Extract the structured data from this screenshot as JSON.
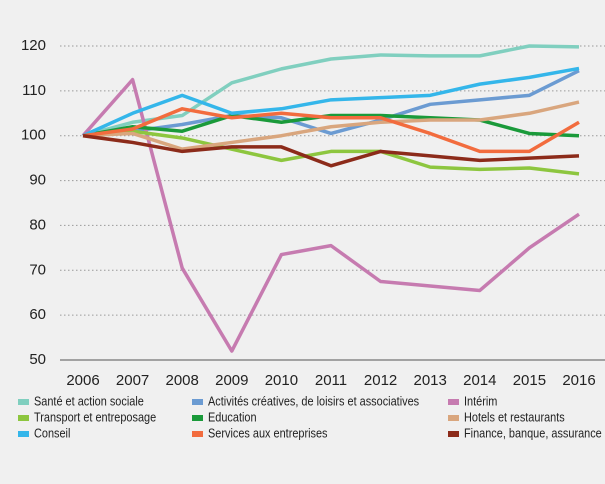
{
  "chart_data": {
    "type": "line",
    "x": [
      2006,
      2007,
      2008,
      2009,
      2010,
      2011,
      2012,
      2013,
      2014,
      2015,
      2016
    ],
    "xticks": [
      2006,
      2007,
      2008,
      2009,
      2010,
      2011,
      2012,
      2013,
      2014,
      2015,
      2016
    ],
    "xlim": [
      2006,
      2016
    ],
    "ylim": [
      50,
      120
    ],
    "yticks": [
      50,
      60,
      70,
      80,
      90,
      100,
      110,
      120
    ],
    "grid": true,
    "legend": "bottom",
    "series": [
      {
        "name": "Santé et action sociale",
        "color": "#80cfbf",
        "values": [
          100,
          103,
          104.5,
          111.8,
          114.9,
          117.1,
          118,
          117.8,
          117.8,
          120,
          119.8
        ]
      },
      {
        "name": "Activités créatives, de loisirs et associatives",
        "color": "#6b9bd2",
        "values": [
          100,
          101,
          102.5,
          104.5,
          104,
          100.5,
          103.5,
          107,
          108,
          109,
          114.5
        ]
      },
      {
        "name": "Intérim",
        "color": "#c67bb0",
        "values": [
          100,
          112.5,
          70.5,
          52,
          73.5,
          75.5,
          67.5,
          66.5,
          65.5,
          75,
          82.5
        ]
      },
      {
        "name": "Transport et entreposage",
        "color": "#8dc63f",
        "values": [
          100,
          101,
          99.5,
          97,
          94.5,
          96.5,
          96.5,
          93,
          92.5,
          92.8,
          91.5
        ]
      },
      {
        "name": "Education",
        "color": "#1a9a3a",
        "values": [
          100,
          102,
          101,
          104.5,
          103,
          104.5,
          104.5,
          104,
          103.5,
          100.5,
          100
        ]
      },
      {
        "name": "Hotels et restaurants",
        "color": "#d9a67e",
        "values": [
          100,
          100.5,
          97,
          98.5,
          100,
          102,
          103,
          103.5,
          103.5,
          105,
          107.5
        ]
      },
      {
        "name": "Conseil",
        "color": "#34b6ea",
        "values": [
          100,
          105,
          109,
          105,
          106,
          108,
          108.5,
          109,
          111.5,
          113,
          115
        ]
      },
      {
        "name": "Services aux entreprises",
        "color": "#f26c3e",
        "values": [
          100,
          101.5,
          106,
          104,
          105,
          104,
          104,
          100.5,
          96.5,
          96.5,
          103
        ]
      },
      {
        "name": "Finance, banque, assurance",
        "color": "#8c2b1a",
        "values": [
          100,
          98.5,
          96.5,
          97.5,
          97.5,
          93.3,
          96.5,
          95.5,
          94.5,
          95,
          95.5
        ]
      }
    ]
  }
}
